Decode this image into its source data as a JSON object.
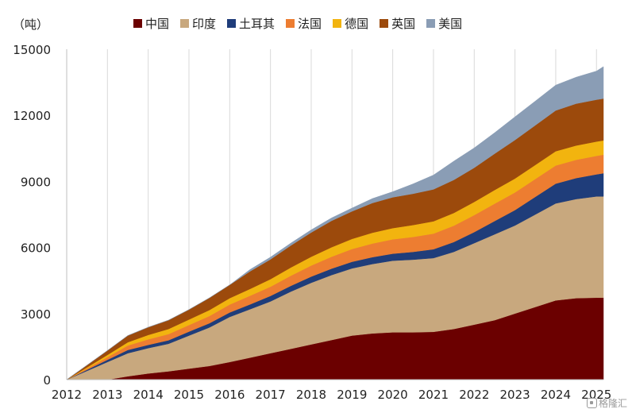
{
  "chart_data": {
    "type": "area",
    "stacked": true,
    "unit_label": "（吨）",
    "x": [
      2012.0,
      2012.5,
      2013.0,
      2013.5,
      2014.0,
      2014.5,
      2015.0,
      2015.5,
      2016.0,
      2016.5,
      2017.0,
      2017.5,
      2018.0,
      2018.5,
      2019.0,
      2019.5,
      2020.0,
      2020.5,
      2021.0,
      2021.5,
      2022.0,
      2022.5,
      2023.0,
      2023.5,
      2024.0,
      2024.5,
      2025.0,
      2025.17
    ],
    "x_ticks": [
      "2012",
      "2013",
      "2014",
      "2015",
      "2016",
      "2017",
      "2018",
      "2019",
      "2020",
      "2021",
      "2022",
      "2023",
      "2024",
      "2025"
    ],
    "ylim": [
      0,
      15000
    ],
    "y_ticks": [
      "0",
      "3000",
      "6000",
      "9000",
      "12000",
      "15000"
    ],
    "grid": "vertical",
    "legend_position": "top",
    "series": [
      {
        "name": "中国",
        "color": "#6b0000",
        "values": [
          0,
          0,
          0,
          150,
          280,
          380,
          500,
          620,
          800,
          1000,
          1200,
          1400,
          1600,
          1800,
          2000,
          2100,
          2150,
          2150,
          2170,
          2300,
          2500,
          2700,
          3000,
          3300,
          3600,
          3700,
          3720,
          3720
        ]
      },
      {
        "name": "印度",
        "color": "#c8a87e",
        "values": [
          0,
          400,
          800,
          1050,
          1150,
          1250,
          1500,
          1750,
          2050,
          2200,
          2350,
          2600,
          2800,
          2950,
          3050,
          3150,
          3250,
          3300,
          3350,
          3500,
          3700,
          3900,
          4000,
          4200,
          4400,
          4500,
          4600,
          4600
        ]
      },
      {
        "name": "土耳其",
        "color": "#1f3d7a",
        "values": [
          0,
          50,
          100,
          150,
          150,
          160,
          180,
          190,
          200,
          220,
          250,
          260,
          280,
          290,
          300,
          310,
          320,
          350,
          400,
          450,
          500,
          600,
          700,
          800,
          900,
          950,
          1000,
          1050
        ]
      },
      {
        "name": "法国",
        "color": "#ed7d31",
        "values": [
          0,
          60,
          120,
          200,
          250,
          280,
          300,
          330,
          360,
          390,
          420,
          460,
          500,
          540,
          580,
          620,
          650,
          680,
          710,
          740,
          770,
          790,
          800,
          810,
          820,
          830,
          840,
          840
        ]
      },
      {
        "name": "德国",
        "color": "#f2b40f",
        "values": [
          0,
          50,
          100,
          150,
          200,
          230,
          250,
          270,
          290,
          310,
          340,
          370,
          400,
          430,
          460,
          490,
          510,
          540,
          560,
          580,
          600,
          620,
          630,
          640,
          650,
          650,
          650,
          650
        ]
      },
      {
        "name": "英国",
        "color": "#9c4a0c",
        "values": [
          0,
          100,
          200,
          300,
          350,
          400,
          450,
          550,
          600,
          800,
          900,
          1000,
          1100,
          1200,
          1250,
          1350,
          1400,
          1420,
          1450,
          1500,
          1550,
          1650,
          1750,
          1800,
          1850,
          1900,
          1900,
          1900
        ]
      },
      {
        "name": "美国",
        "color": "#8a9db5",
        "values": [
          0,
          0,
          0,
          0,
          0,
          0,
          0,
          0,
          0,
          80,
          100,
          110,
          120,
          130,
          150,
          200,
          250,
          450,
          650,
          850,
          900,
          950,
          1050,
          1100,
          1150,
          1200,
          1300,
          1450
        ]
      }
    ]
  },
  "watermark": "格隆汇"
}
